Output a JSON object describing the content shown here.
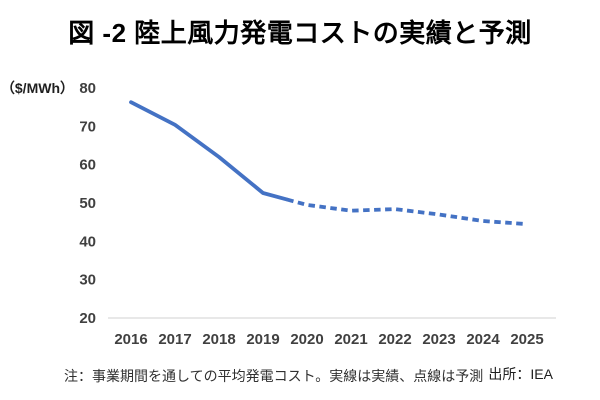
{
  "title": "図 -2 陸上風力発電コストの実績と予測",
  "footer": {
    "note": "注：事業期間を通しての平均発電コスト。実線は実績、点線は予測",
    "source": "出所：IEA"
  },
  "chart_data": {
    "type": "line",
    "title": "図 -2 陸上風力発電コストの実績と予測",
    "ylabel": "（$/MWh）",
    "xlabel": "",
    "x": [
      2016,
      2017,
      2018,
      2019,
      2020,
      2021,
      2022,
      2023,
      2024,
      2025
    ],
    "series": [
      {
        "name": "陸上風力発電コスト",
        "values": [
          76.3,
          70.4,
          62.0,
          52.6,
          49.5,
          48.0,
          48.4,
          47.0,
          45.3,
          44.5
        ],
        "solid_until_x": 2019.55,
        "solid_meaning": "実線は実績",
        "dashed_meaning": "点線は予測"
      }
    ],
    "ylim": [
      20,
      80
    ],
    "ytick_step": 10,
    "grid": false,
    "legend": "none",
    "line_color": "#4472C4",
    "axis_color": "#D9D9D9",
    "tick_label_color": "#404040"
  }
}
